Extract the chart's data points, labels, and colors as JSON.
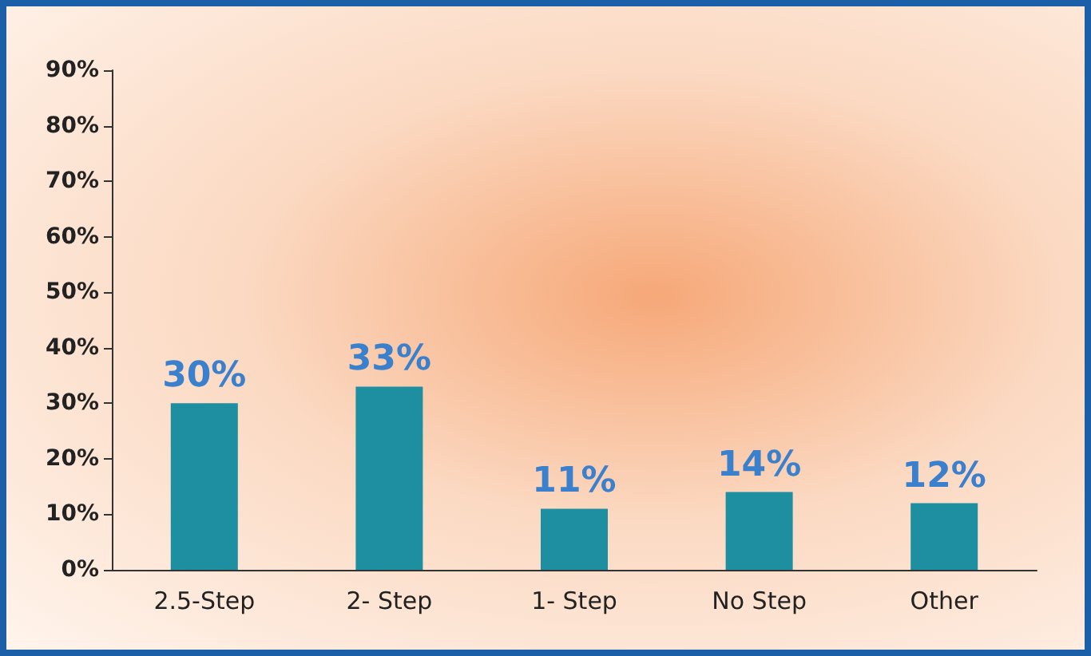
{
  "chart_data": {
    "type": "bar",
    "categories": [
      "2.5-Step",
      "2- Step",
      "1- Step",
      "No Step",
      "Other"
    ],
    "values": [
      30,
      33,
      11,
      14,
      12
    ],
    "value_labels": [
      "30%",
      "33%",
      "11%",
      "14%",
      "12%"
    ],
    "color": "#1e8fa0",
    "ylim": [
      0,
      90
    ],
    "yticks": [
      {
        "value": 0,
        "label": "0%"
      },
      {
        "value": 10,
        "label": "10%"
      },
      {
        "value": 20,
        "label": "20%"
      },
      {
        "value": 30,
        "label": "30%"
      },
      {
        "value": 40,
        "label": "40%"
      },
      {
        "value": 50,
        "label": "50%"
      },
      {
        "value": 60,
        "label": "60%"
      },
      {
        "value": 70,
        "label": "70%"
      },
      {
        "value": 80,
        "label": "80%"
      },
      {
        "value": 90,
        "label": "90%"
      }
    ],
    "grid": false
  }
}
